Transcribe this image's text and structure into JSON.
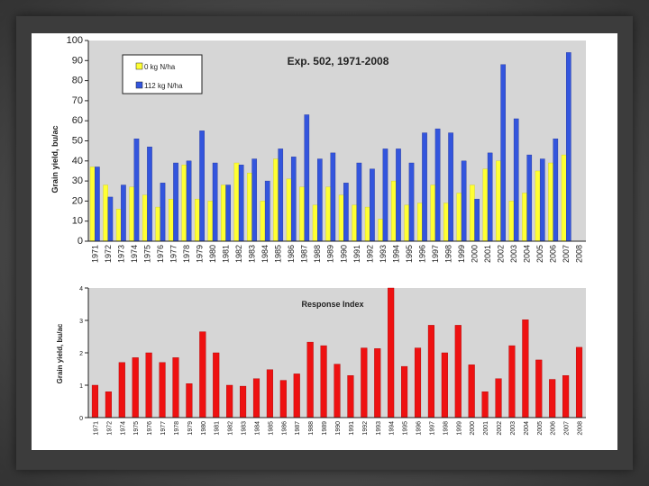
{
  "chart_data": [
    {
      "type": "bar",
      "title": "Exp. 502, 1971-2008",
      "xlabel": "",
      "ylabel": "Grain yield, bu/ac",
      "ylim": [
        0,
        100
      ],
      "yticks": [
        0,
        10,
        20,
        30,
        40,
        50,
        60,
        70,
        80,
        90,
        100
      ],
      "grid": false,
      "legend_position": "top-left",
      "categories": [
        "1971",
        "1972",
        "1973",
        "1974",
        "1975",
        "1976",
        "1977",
        "1978",
        "1979",
        "1980",
        "1981",
        "1982",
        "1983",
        "1984",
        "1985",
        "1986",
        "1987",
        "1988",
        "1989",
        "1990",
        "1991",
        "1992",
        "1993",
        "1994",
        "1995",
        "1996",
        "1997",
        "1998",
        "1999",
        "2000",
        "2001",
        "2002",
        "2003",
        "2004",
        "2005",
        "2006",
        "2007",
        "2008"
      ],
      "series": [
        {
          "name": "0 kg N/ha",
          "color": "#ffff33",
          "values": [
            37,
            28,
            16,
            27,
            23,
            17,
            21,
            38,
            21,
            20,
            28,
            39,
            34,
            20,
            41,
            31,
            27,
            18,
            27,
            23,
            18,
            17,
            11,
            30,
            18,
            19,
            28,
            19,
            24,
            28,
            36,
            40,
            20,
            24,
            35,
            39,
            43,
            0
          ]
        },
        {
          "name": "112 kg N/ha",
          "color": "#3355dd",
          "values": [
            37,
            22,
            28,
            51,
            47,
            29,
            39,
            40,
            55,
            39,
            28,
            38,
            41,
            30,
            46,
            42,
            63,
            41,
            44,
            29,
            39,
            36,
            46,
            46,
            39,
            54,
            56,
            54,
            40,
            21,
            44,
            88,
            61,
            43,
            41,
            51,
            94,
            0
          ]
        }
      ]
    },
    {
      "type": "bar",
      "title": "Response Index",
      "xlabel": "",
      "ylabel": "Grain yield, bu/ac",
      "ylim": [
        0,
        4
      ],
      "yticks": [
        0,
        1,
        2,
        3,
        4
      ],
      "grid": false,
      "categories": [
        "1971",
        "1972",
        "1974",
        "1975",
        "1976",
        "1977",
        "1978",
        "1979",
        "1980",
        "1981",
        "1982",
        "1983",
        "1984",
        "1985",
        "1986",
        "1987",
        "1988",
        "1989",
        "1990",
        "1991",
        "1992",
        "1993",
        "1994",
        "1995",
        "1996",
        "1997",
        "1998",
        "1999",
        "2000",
        "2001",
        "2002",
        "2003",
        "2004",
        "2005",
        "2006",
        "2007",
        "2008"
      ],
      "series": [
        {
          "name": "Response Index",
          "color": "#ee1111",
          "values": [
            1.0,
            0.8,
            1.7,
            1.85,
            2.0,
            1.7,
            1.85,
            1.05,
            2.65,
            2.0,
            1.0,
            0.97,
            1.2,
            1.48,
            1.15,
            1.35,
            2.33,
            2.22,
            1.65,
            1.3,
            2.15,
            2.13,
            4.0,
            1.58,
            2.15,
            2.85,
            2.0,
            2.85,
            1.63,
            0.8,
            1.2,
            2.22,
            3.02,
            1.78,
            1.18,
            1.3,
            2.17
          ]
        }
      ]
    }
  ]
}
